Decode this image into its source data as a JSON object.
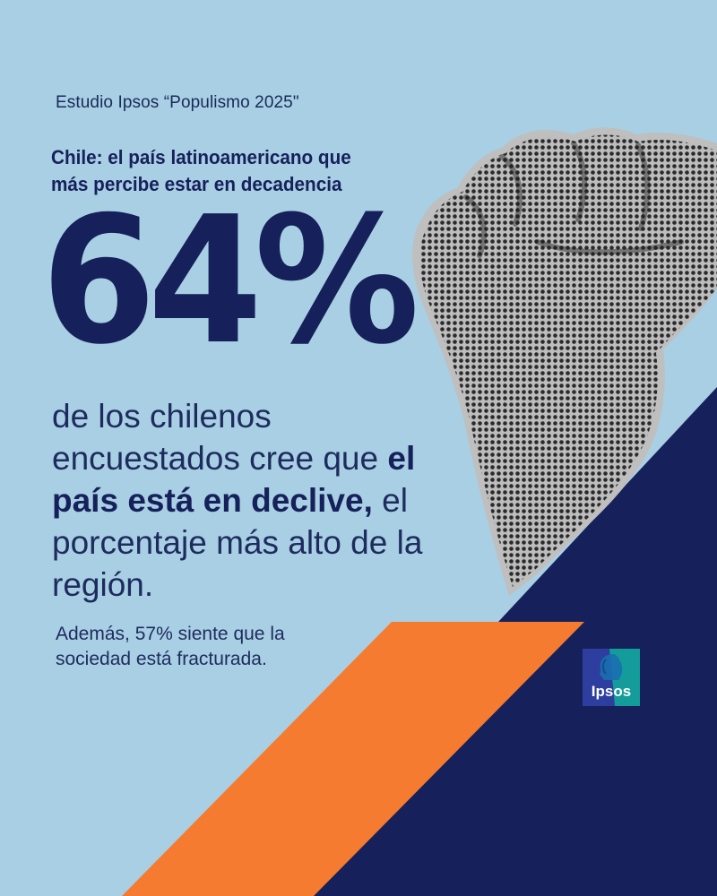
{
  "eyebrow": "Estudio Ipsos “Populismo 2025\"",
  "headline": {
    "line1": "Chile: el país latinoamericano que",
    "line2": "más percibe estar en decadencia"
  },
  "stat": "64%",
  "body": {
    "part1": "de los chilenos encuestados cree que ",
    "highlight": "el país está en declive,",
    "part2": " el porcentaje más alto de la región."
  },
  "note": "Además, 57% siente que la sociedad está fracturada.",
  "logo": {
    "text": "Ipsos",
    "icon": "ipsos-profile-icon"
  },
  "colors": {
    "background": "#a8cfe3",
    "navy": "#16205a",
    "orange": "#f47b2f",
    "logo_blue": "#2d3e9e",
    "logo_teal": "#139c9a"
  }
}
